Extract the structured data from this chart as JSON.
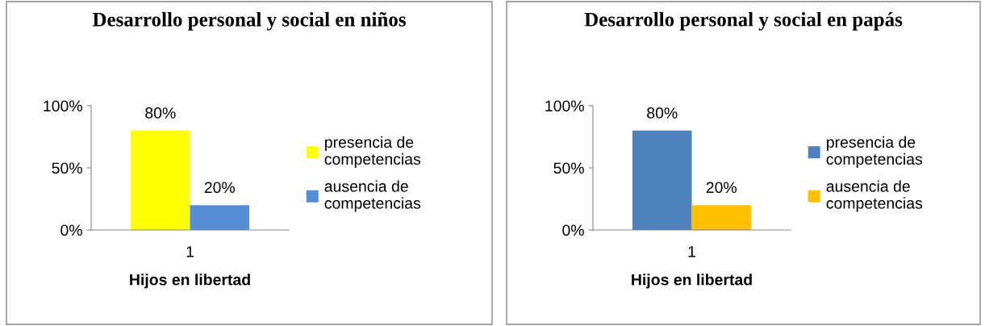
{
  "chart_data": [
    {
      "type": "bar",
      "title": "Desarrollo personal y social en niños",
      "xlabel": "Hijos en libertad",
      "categories": [
        "1"
      ],
      "series": [
        {
          "name": "presencia de competencias",
          "color": "#ffff00",
          "values": [
            80
          ],
          "value_labels": [
            "80%"
          ]
        },
        {
          "name": "ausencia de competencias",
          "color": "#558ed5",
          "values": [
            20
          ],
          "value_labels": [
            "20%"
          ]
        }
      ],
      "ylim": [
        0,
        100
      ],
      "yticks": [
        {
          "value": 0,
          "label": "0%"
        },
        {
          "value": 50,
          "label": "50%"
        },
        {
          "value": 100,
          "label": "100%"
        }
      ],
      "grid": false,
      "legend": "right"
    },
    {
      "type": "bar",
      "title": "Desarrollo personal y social en papás",
      "xlabel": "Hijos en libertad",
      "categories": [
        "1"
      ],
      "series": [
        {
          "name": "presencia de competencias",
          "color": "#4f81bd",
          "values": [
            80
          ],
          "value_labels": [
            "80%"
          ]
        },
        {
          "name": "ausencia de competencias",
          "color": "#ffc000",
          "values": [
            20
          ],
          "value_labels": [
            "20%"
          ]
        }
      ],
      "ylim": [
        0,
        100
      ],
      "yticks": [
        {
          "value": 0,
          "label": "0%"
        },
        {
          "value": 50,
          "label": "50%"
        },
        {
          "value": 100,
          "label": "100%"
        }
      ],
      "grid": false,
      "legend": "right"
    }
  ]
}
